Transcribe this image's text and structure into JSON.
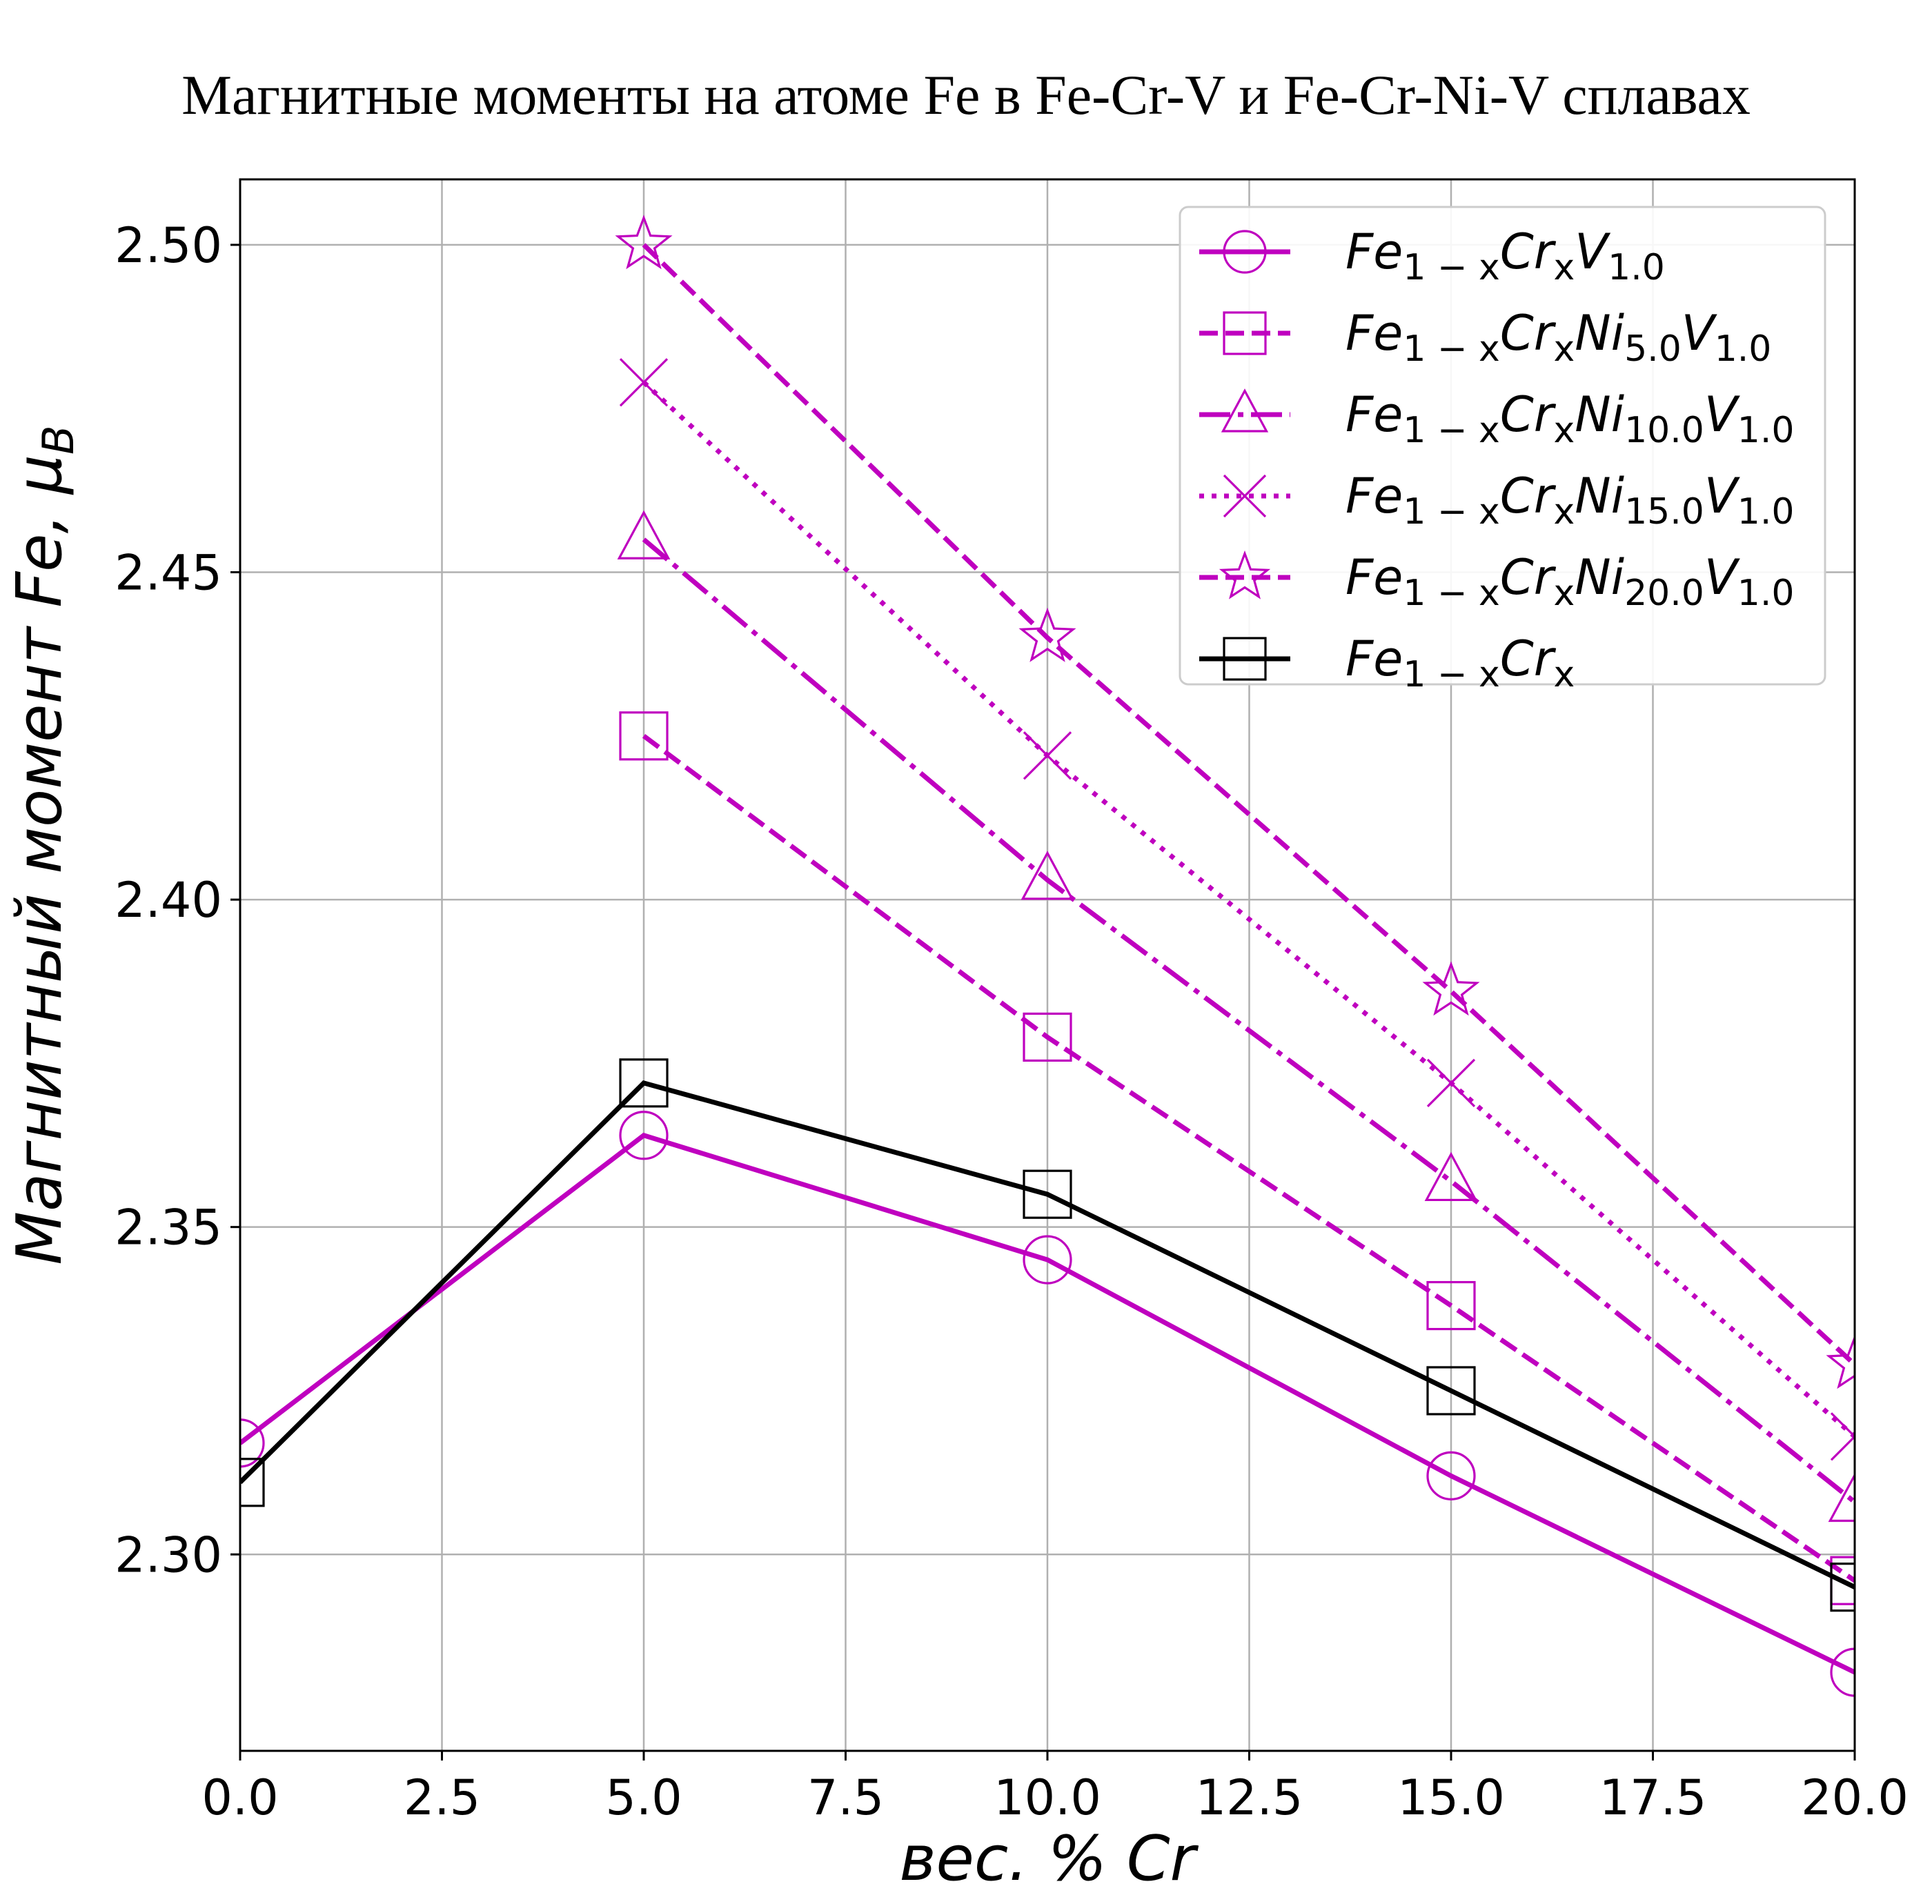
{
  "chart_data": {
    "type": "line",
    "title": "Магнитные моменты на атоме Fe в Fe-Cr-V и Fe-Cr-Ni-V сплавах",
    "xlabel": "вес. % Cr",
    "ylabel": "Магнитный момент Fe, μB",
    "xlim": [
      0,
      20
    ],
    "ylim": [
      2.27,
      2.51
    ],
    "xticks": [
      "0.0",
      "2.5",
      "5.0",
      "7.5",
      "10.0",
      "12.5",
      "15.0",
      "17.5",
      "20.0"
    ],
    "yticks": [
      "2.30",
      "2.35",
      "2.40",
      "2.45",
      "2.50"
    ],
    "grid": true,
    "legend_position": "top-right",
    "series": [
      {
        "name": "Fe1−xCrxV1.0",
        "name_parts": {
          "base": "Fe",
          "s1": "1 − x",
          "mid": "Cr",
          "s2": "x",
          "el3": "",
          "s3": "",
          "el4": "V",
          "s4": "1.0"
        },
        "color": "#bf00bf",
        "dash": "solid",
        "marker": "circle",
        "x": [
          0,
          5,
          10,
          15,
          20
        ],
        "y": [
          2.317,
          2.364,
          2.345,
          2.312,
          2.282
        ]
      },
      {
        "name": "Fe1−xCrxNi5.0V1.0",
        "name_parts": {
          "base": "Fe",
          "s1": "1 − x",
          "mid": "Cr",
          "s2": "x",
          "el3": "Ni",
          "s3": "5.0",
          "el4": "V",
          "s4": "1.0"
        },
        "color": "#bf00bf",
        "dash": "dashed",
        "marker": "square",
        "x": [
          5,
          10,
          15,
          20
        ],
        "y": [
          2.425,
          2.379,
          2.338,
          2.296
        ]
      },
      {
        "name": "Fe1−xCrxNi10.0V1.0",
        "name_parts": {
          "base": "Fe",
          "s1": "1 − x",
          "mid": "Cr",
          "s2": "x",
          "el3": "Ni",
          "s3": "10.0",
          "el4": "V",
          "s4": "1.0"
        },
        "color": "#bf00bf",
        "dash": "dashdot",
        "marker": "triangle",
        "x": [
          5,
          10,
          15,
          20
        ],
        "y": [
          2.455,
          2.403,
          2.357,
          2.308
        ]
      },
      {
        "name": "Fe1−xCrxNi15.0V1.0",
        "name_parts": {
          "base": "Fe",
          "s1": "1 − x",
          "mid": "Cr",
          "s2": "x",
          "el3": "Ni",
          "s3": "15.0",
          "el4": "V",
          "s4": "1.0"
        },
        "color": "#bf00bf",
        "dash": "dotted",
        "marker": "x",
        "x": [
          5,
          10,
          15,
          20
        ],
        "y": [
          2.479,
          2.422,
          2.372,
          2.318
        ]
      },
      {
        "name": "Fe1−xCrxNi20.0V1.0",
        "name_parts": {
          "base": "Fe",
          "s1": "1 − x",
          "mid": "Cr",
          "s2": "x",
          "el3": "Ni",
          "s3": "20.0",
          "el4": "V",
          "s4": "1.0"
        },
        "color": "#bf00bf",
        "dash": "dashed",
        "marker": "star",
        "x": [
          5,
          10,
          15,
          20
        ],
        "y": [
          2.5,
          2.44,
          2.386,
          2.329
        ]
      },
      {
        "name": "Fe1−xCrx",
        "name_parts": {
          "base": "Fe",
          "s1": "1 − x",
          "mid": "Cr",
          "s2": "x",
          "el3": "",
          "s3": "",
          "el4": "",
          "s4": ""
        },
        "color": "#000000",
        "dash": "solid",
        "marker": "square",
        "x": [
          0,
          5,
          10,
          15,
          20
        ],
        "y": [
          2.311,
          2.372,
          2.355,
          2.325,
          2.295
        ]
      }
    ]
  }
}
